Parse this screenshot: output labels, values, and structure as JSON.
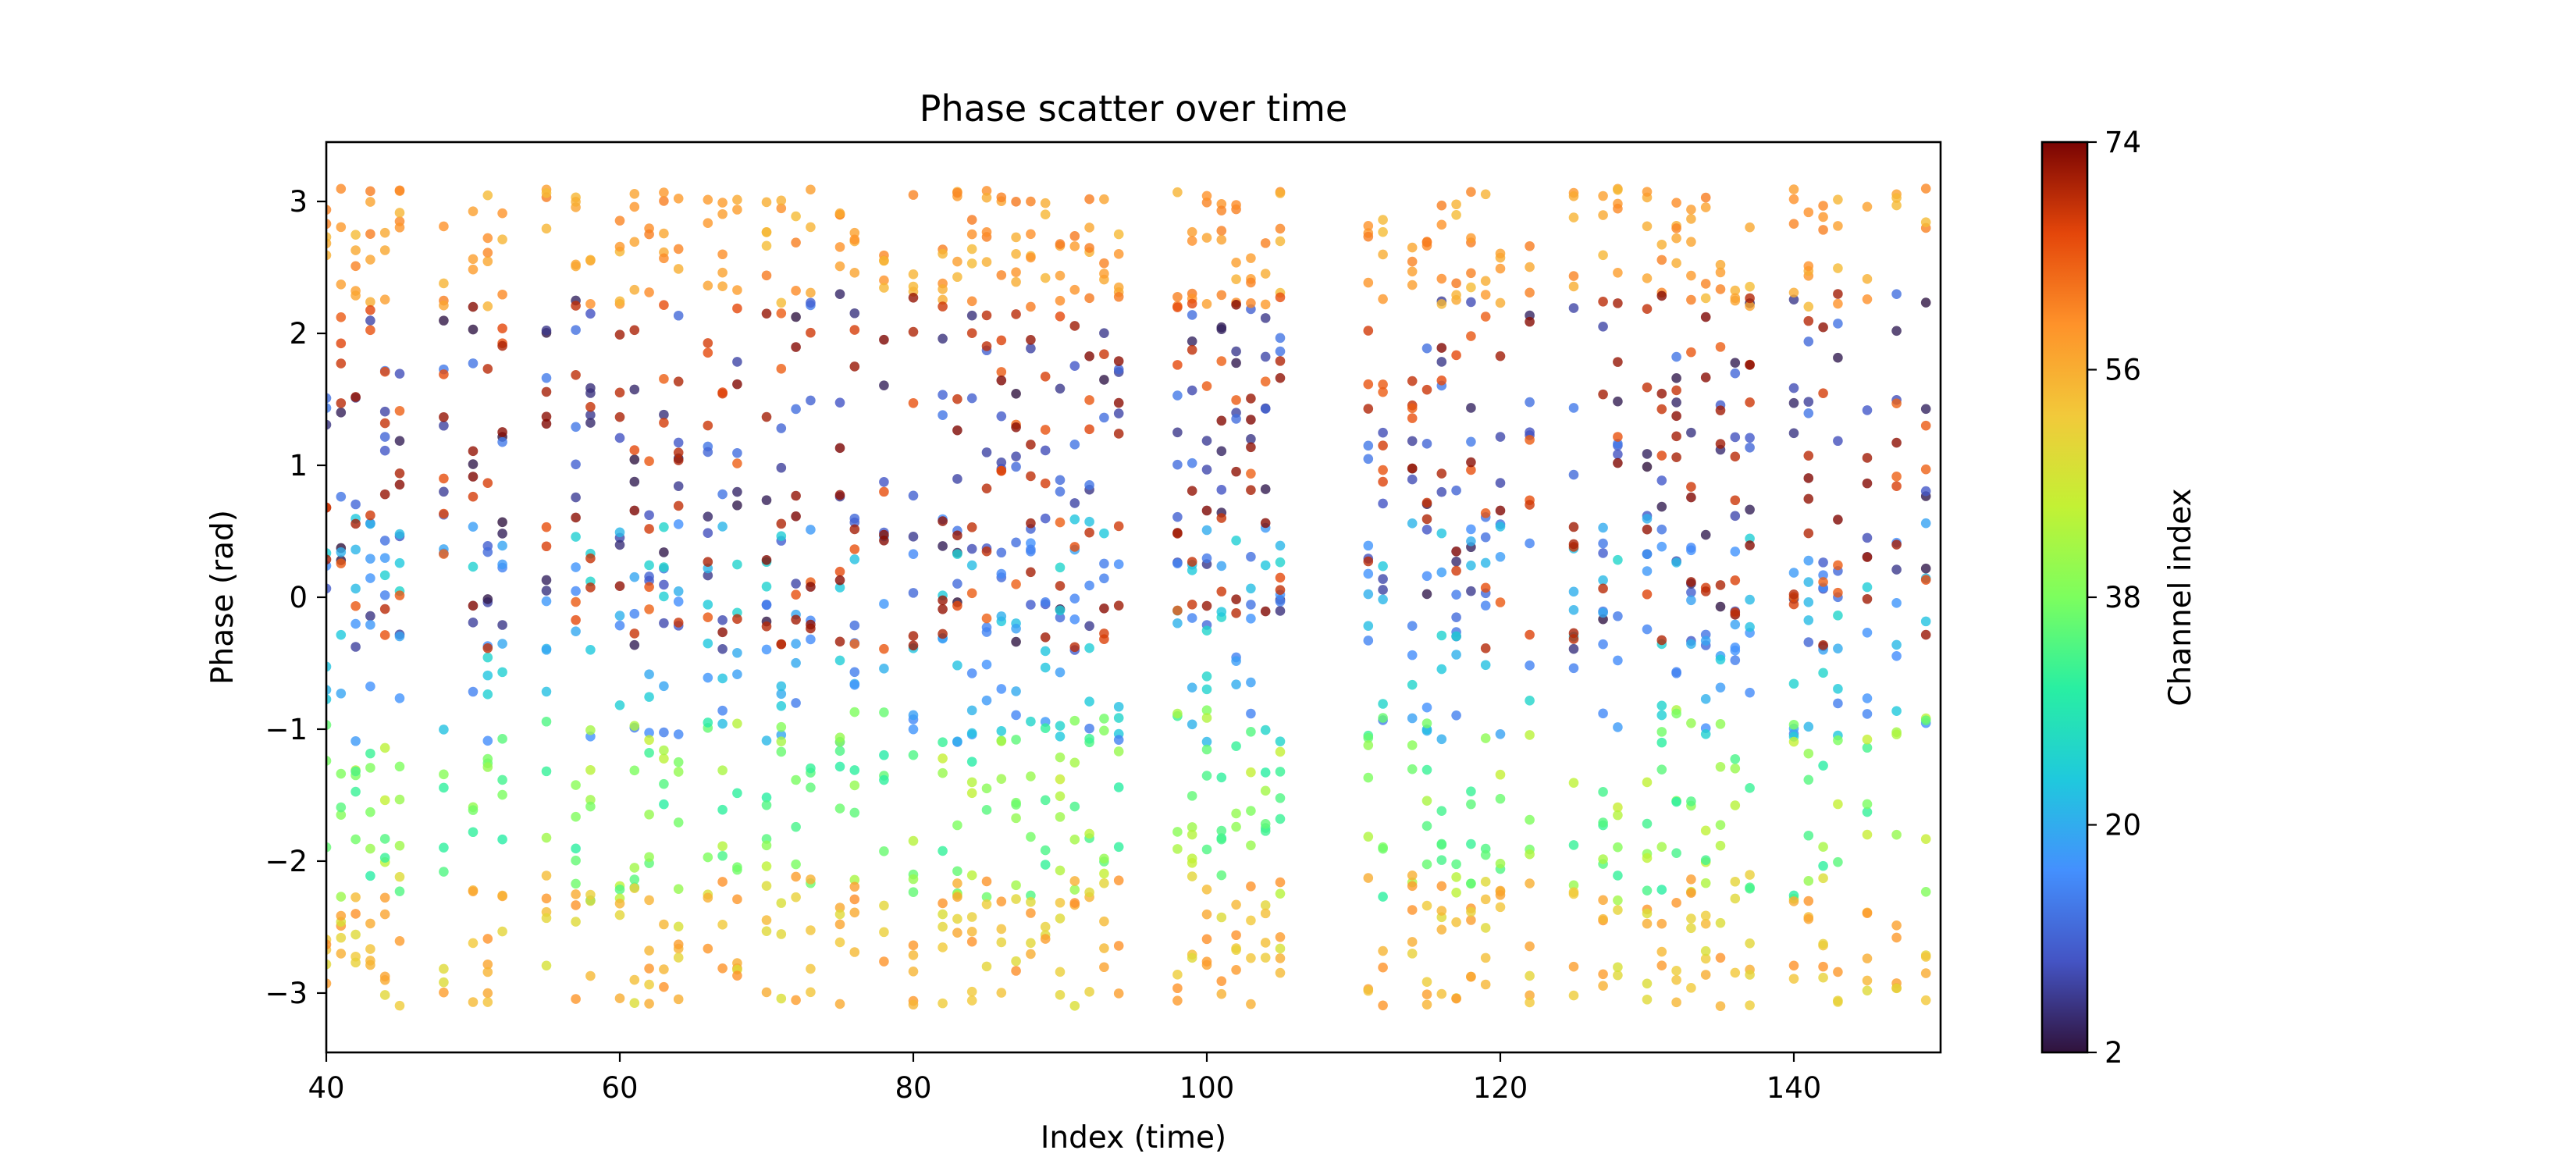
{
  "chart_data": {
    "type": "scatter",
    "title": "Phase scatter over time",
    "xlabel": "Index (time)",
    "ylabel": "Phase (rad)",
    "xlim": [
      40,
      150
    ],
    "ylim": [
      -3.45,
      3.45
    ],
    "xticks": [
      "40",
      "60",
      "80",
      "100",
      "120",
      "140"
    ],
    "yticks": [
      "3",
      "2",
      "1",
      "0",
      "−1",
      "−2",
      "−3"
    ],
    "colorbar": {
      "label": "Channel index",
      "min": 2,
      "max": 74,
      "ticks": [
        "2",
        "20",
        "38",
        "56",
        "74"
      ],
      "colormap": "turbo"
    },
    "time_indices": [
      40,
      41,
      42,
      43,
      44,
      45,
      48,
      50,
      51,
      52,
      55,
      57,
      58,
      60,
      61,
      62,
      63,
      64,
      66,
      67,
      68,
      70,
      71,
      72,
      73,
      75,
      76,
      78,
      80,
      82,
      83,
      84,
      85,
      86,
      87,
      88,
      89,
      90,
      91,
      92,
      93,
      94,
      98,
      99,
      100,
      101,
      102,
      103,
      104,
      105,
      111,
      112,
      114,
      115,
      116,
      117,
      118,
      119,
      120,
      122,
      125,
      127,
      128,
      130,
      131,
      132,
      133,
      134,
      135,
      136,
      137,
      140,
      141,
      142,
      143,
      145,
      147,
      149
    ],
    "point_groups": [
      {
        "channel_range": [
          2,
          14
        ],
        "phase_range": [
          -0.4,
          2.3
        ],
        "color_note": "dark blue / indigo"
      },
      {
        "channel_range": [
          14,
          26
        ],
        "phase_range": [
          -1.1,
          0.6
        ],
        "color_note": "light blue / cyan"
      },
      {
        "channel_range": [
          30,
          46
        ],
        "phase_range": [
          -2.3,
          -0.85
        ],
        "color_note": "green / yellow-green"
      },
      {
        "channel_range": [
          48,
          60
        ],
        "phase_range": [
          -3.1,
          -2.1
        ],
        "color_note": "yellow-orange"
      },
      {
        "channel_range": [
          54,
          62
        ],
        "phase_range": [
          2.2,
          3.1
        ],
        "color_note": "orange"
      },
      {
        "channel_range": [
          64,
          74
        ],
        "phase_range": [
          -0.4,
          2.3
        ],
        "color_note": "red / dark red"
      }
    ]
  }
}
